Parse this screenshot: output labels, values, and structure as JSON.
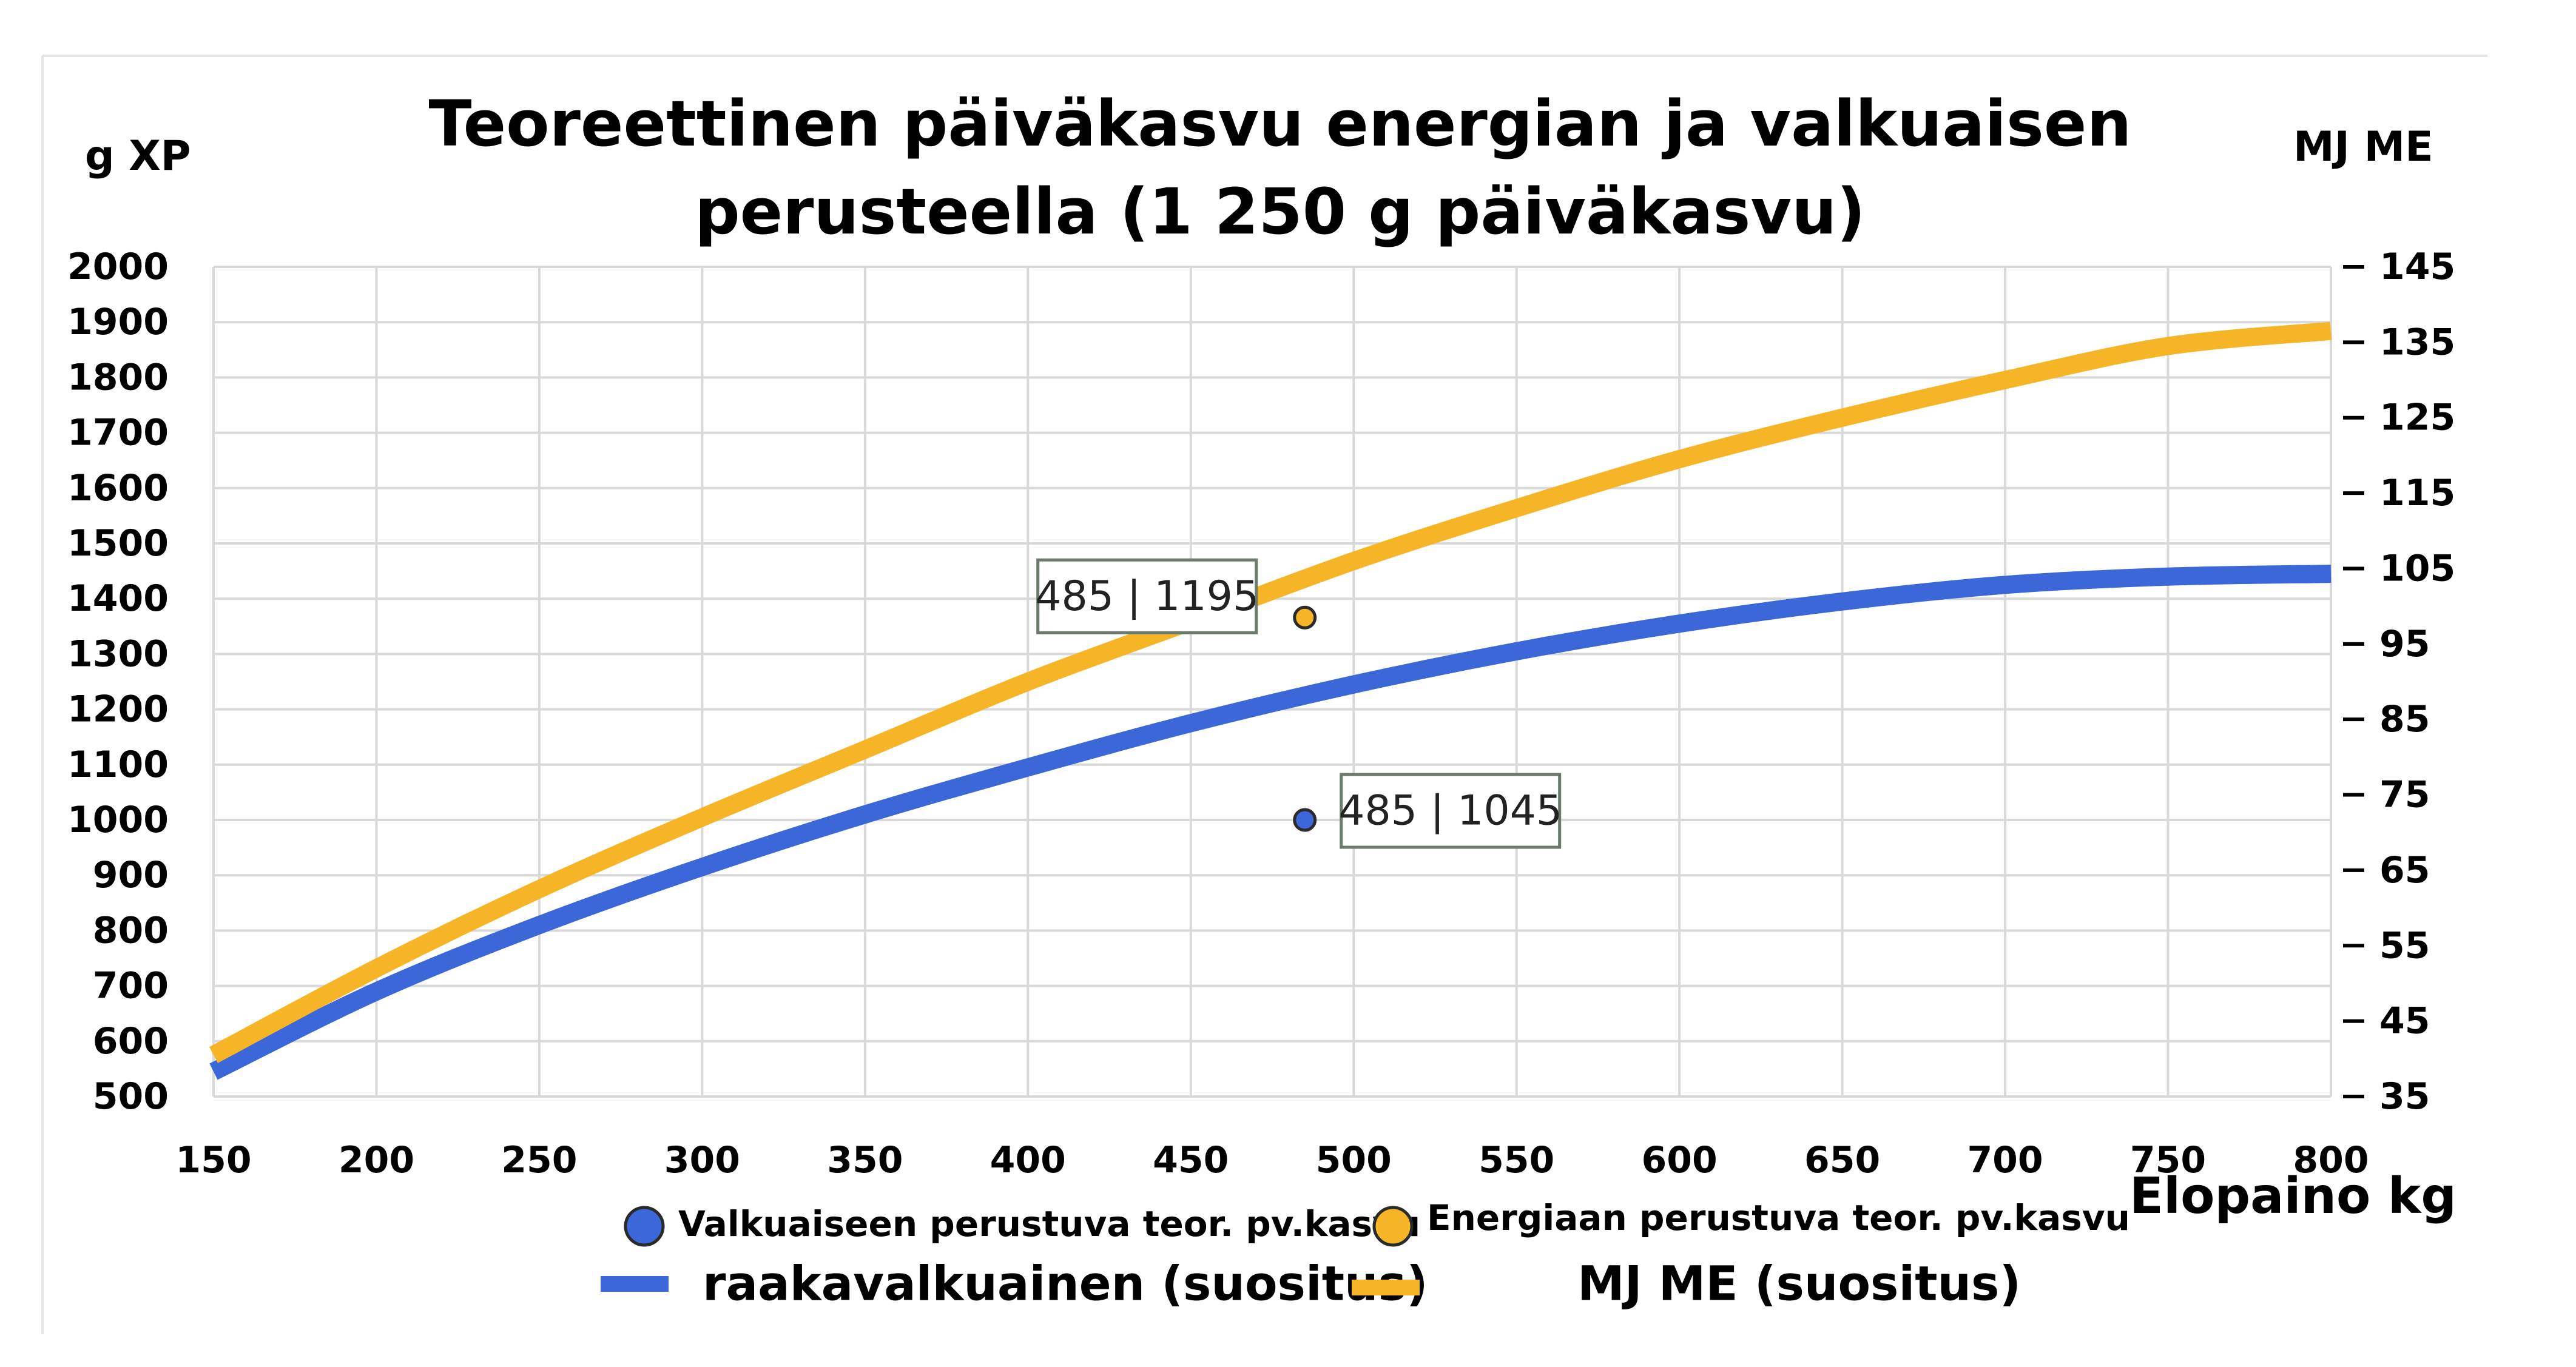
{
  "chart_data": {
    "type": "line",
    "title": "Teoreettinen päiväkasvu energian ja valkuaisen perusteella (1 250 g päiväkasvu)",
    "title_lines": [
      "Teoreettinen päiväkasvu energian ja valkuaisen",
      "perusteella (1 250 g päiväkasvu)"
    ],
    "xlabel": "Elopaino kg",
    "ylabel_left": "g XP",
    "ylabel_right": "MJ ME",
    "xlim": [
      150,
      800
    ],
    "ylim_left": [
      500,
      2000
    ],
    "ylim_right": [
      35,
      145
    ],
    "x_ticks": [
      150,
      200,
      250,
      300,
      350,
      400,
      450,
      500,
      550,
      600,
      650,
      700,
      750,
      800
    ],
    "y_ticks_left": [
      500,
      600,
      700,
      800,
      900,
      1000,
      1100,
      1200,
      1300,
      1400,
      1500,
      1600,
      1700,
      1800,
      1900,
      2000
    ],
    "y_ticks_right": [
      35,
      45,
      55,
      65,
      75,
      85,
      95,
      105,
      115,
      125,
      135,
      145
    ],
    "grid": true,
    "legend_position": "bottom",
    "series": [
      {
        "name": "raakavalkuainen (suositus)",
        "axis": "left",
        "color": "#3b67d8",
        "x": [
          150,
          200,
          250,
          300,
          350,
          400,
          450,
          500,
          550,
          600,
          650,
          700,
          750,
          800
        ],
        "values": [
          545,
          690,
          810,
          915,
          1010,
          1095,
          1175,
          1245,
          1305,
          1355,
          1395,
          1425,
          1440,
          1445
        ]
      },
      {
        "name": "MJ ME (suositus)",
        "axis": "right",
        "color": "#f6b526",
        "x": [
          150,
          200,
          250,
          300,
          350,
          400,
          450,
          500,
          550,
          600,
          650,
          700,
          750,
          800
        ],
        "values": [
          40.5,
          52,
          62.5,
          72,
          81,
          90,
          98,
          106,
          113,
          119.5,
          125,
          130,
          134.5,
          136.5
        ]
      }
    ],
    "points": [
      {
        "name": "Valkuaiseen perustuva teor. pv.kasvu",
        "x": 485,
        "y": 1000,
        "axis": "left",
        "color": "#3b67d8",
        "label": "485 | 1045"
      },
      {
        "name": "Energiaan perustuva teor. pv.kasvu",
        "x": 485,
        "y": 98.5,
        "axis": "right",
        "color": "#f6b526",
        "label": "485 | 1195"
      }
    ]
  }
}
